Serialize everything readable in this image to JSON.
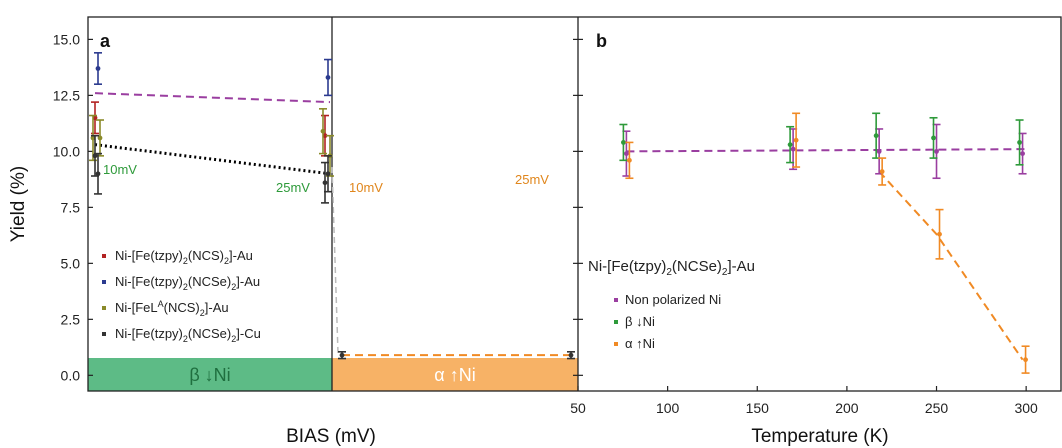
{
  "chart_data": [
    {
      "panel": "a",
      "type": "scatter",
      "ylabel": "Yield (%)",
      "xlabel": "BIAS (mV)",
      "ylim": [
        -0.7,
        16.0
      ],
      "yticks": [
        "0.0",
        "2.5",
        "5.0",
        "7.5",
        "10.0",
        "12.5",
        "15.0"
      ],
      "xticks": [
        "50"
      ],
      "series": [
        {
          "name": "Ni-[Fe(tzpy)2(NCS)2]-Au",
          "color": "#b22222",
          "points": [
            {
              "x": "10",
              "y": 11.5,
              "err": 0.7
            },
            {
              "x": "25",
              "y": 10.7,
              "err": 0.9
            }
          ]
        },
        {
          "name": "Ni-[Fe(tzpy)2(NCSe)2]-Au",
          "color": "#2b3a8f",
          "points": [
            {
              "x": "10",
              "y": 13.7,
              "err": 0.7
            },
            {
              "x": "25",
              "y": 13.3,
              "err": 0.8
            }
          ]
        },
        {
          "name": "Ni-[FeL^A(NCS)2]-Au",
          "color": "#8a8a2a",
          "points": [
            {
              "x": "10",
              "y": 10.6,
              "err": 1.0
            },
            {
              "x": "25",
              "y": 10.9,
              "err": 1.0
            },
            {
              "x": "10",
              "y": 10.6,
              "err": 0.8
            },
            {
              "x": "25",
              "y": 9.8,
              "err": 0.9
            }
          ]
        },
        {
          "name": "Ni-[Fe(tzpy)2(NCSe)2]-Cu",
          "color": "#333333",
          "points": [
            {
              "x": "10",
              "y": 9.8,
              "err": 0.9
            },
            {
              "x": "25",
              "y": 8.6,
              "err": 0.9
            },
            {
              "x": "10",
              "y": 9.0,
              "err": 0.9
            },
            {
              "x": "25",
              "y": 9.0,
              "err": 0.8
            },
            {
              "x": "10",
              "y": 0.9,
              "err": 0.15
            },
            {
              "x": "25",
              "y": 0.9,
              "err": 0.15
            }
          ]
        }
      ],
      "fits": [
        {
          "color": "#9a3ea0",
          "style": "dashed",
          "from": {
            "x": "10",
            "y": 12.6
          },
          "to": {
            "x": "25",
            "y": 12.2
          }
        },
        {
          "color": "#000000",
          "style": "dotted",
          "from": {
            "x": "10",
            "y": 10.3
          },
          "to": {
            "x": "25",
            "y": 9.0
          }
        },
        {
          "color": "#f08a24",
          "style": "dashed",
          "from": {
            "x": "10",
            "y": 0.9
          },
          "to": {
            "x": "25",
            "y": 0.9
          }
        }
      ],
      "annotations": {
        "left_low": {
          "text": "10mV",
          "color": "#2e9a3a"
        },
        "left_high": {
          "text": "25mV",
          "color": "#2e9a3a"
        },
        "right_low": {
          "text": "10mV",
          "color": "#e0861c"
        },
        "right_high": {
          "text": "25mV",
          "color": "#e0861c"
        }
      },
      "bands": [
        {
          "label": "β ↓Ni",
          "color": "#5dbb86",
          "arrow": "down"
        },
        {
          "label": "α ↑Ni",
          "color": "#f7b266",
          "arrow": "up"
        }
      ],
      "legend": {
        "items": [
          {
            "prefix": "Ni-[Fe(tzpy)",
            "sub1": "2",
            "mid": "(NCS)",
            "sub2": "2",
            "sup": "",
            "suffix": "]-Au",
            "color": "#b22222"
          },
          {
            "prefix": "Ni-[Fe(tzpy)",
            "sub1": "2",
            "mid": "(NCSe)",
            "sub2": "2",
            "sup": "",
            "suffix": "]-Au",
            "color": "#2b3a8f"
          },
          {
            "prefix": "Ni-[FeL",
            "sub1": "",
            "mid": "(NCS)",
            "sub2": "2",
            "sup": "A",
            "suffix": "]-Au",
            "color": "#8a8a2a"
          },
          {
            "prefix": "Ni-[Fe(tzpy)",
            "sub1": "2",
            "mid": "(NCSe)",
            "sub2": "2",
            "sup": "",
            "suffix": "]-Cu",
            "color": "#333333"
          }
        ]
      }
    },
    {
      "panel": "b",
      "type": "scatter",
      "xlabel": "Temperature (K)",
      "xlim": [
        50,
        320
      ],
      "xticks": [
        "50",
        "100",
        "150",
        "200",
        "250",
        "300"
      ],
      "ylim": [
        -0.7,
        16.0
      ],
      "title": {
        "prefix": "Ni-[Fe(tzpy)",
        "sub1": "2",
        "mid": "(NCSe)",
        "sub2": "2",
        "suffix": "]-Au"
      },
      "series": [
        {
          "name": "Non polarized Ni",
          "color": "#9a3ea0",
          "points": [
            {
              "x": 77,
              "y": 9.9,
              "err": 1.0
            },
            {
              "x": 170,
              "y": 10.1,
              "err": 0.9
            },
            {
              "x": 218,
              "y": 10.0,
              "err": 1.0
            },
            {
              "x": 250,
              "y": 10.0,
              "err": 1.2
            },
            {
              "x": 298,
              "y": 9.9,
              "err": 0.9
            }
          ]
        },
        {
          "name": "β ↓Ni",
          "color": "#2e9a3a",
          "points": [
            {
              "x": 77,
              "y": 10.4,
              "err": 0.8
            },
            {
              "x": 170,
              "y": 10.3,
              "err": 0.8
            },
            {
              "x": 218,
              "y": 10.7,
              "err": 1.0
            },
            {
              "x": 250,
              "y": 10.6,
              "err": 0.9
            },
            {
              "x": 298,
              "y": 10.4,
              "err": 1.0
            }
          ]
        },
        {
          "name": "α ↑Ni",
          "color": "#f08a24",
          "points": [
            {
              "x": 77,
              "y": 9.6,
              "err": 0.8
            },
            {
              "x": 170,
              "y": 10.5,
              "err": 1.2
            },
            {
              "x": 218,
              "y": 9.1,
              "err": 0.6
            },
            {
              "x": 250,
              "y": 6.3,
              "err": 1.1
            },
            {
              "x": 298,
              "y": 0.7,
              "err": 0.6
            }
          ]
        }
      ],
      "fits": [
        {
          "color": "#9a3ea0",
          "style": "dashed",
          "points": [
            [
              77,
              10.0
            ],
            [
              300,
              10.1
            ]
          ]
        },
        {
          "color": "#f08a24",
          "style": "dashed",
          "points": [
            [
              218,
              9.1
            ],
            [
              250,
              6.3
            ],
            [
              298,
              0.7
            ]
          ]
        }
      ],
      "legend": {
        "items": [
          {
            "text": "Non polarized Ni",
            "color": "#9a3ea0",
            "greek": "",
            "arrow": ""
          },
          {
            "text": "Ni",
            "color": "#2e9a3a",
            "greek": "β",
            "arrow": "down"
          },
          {
            "text": "Ni",
            "color": "#f08a24",
            "greek": "α",
            "arrow": "up"
          }
        ]
      }
    }
  ]
}
